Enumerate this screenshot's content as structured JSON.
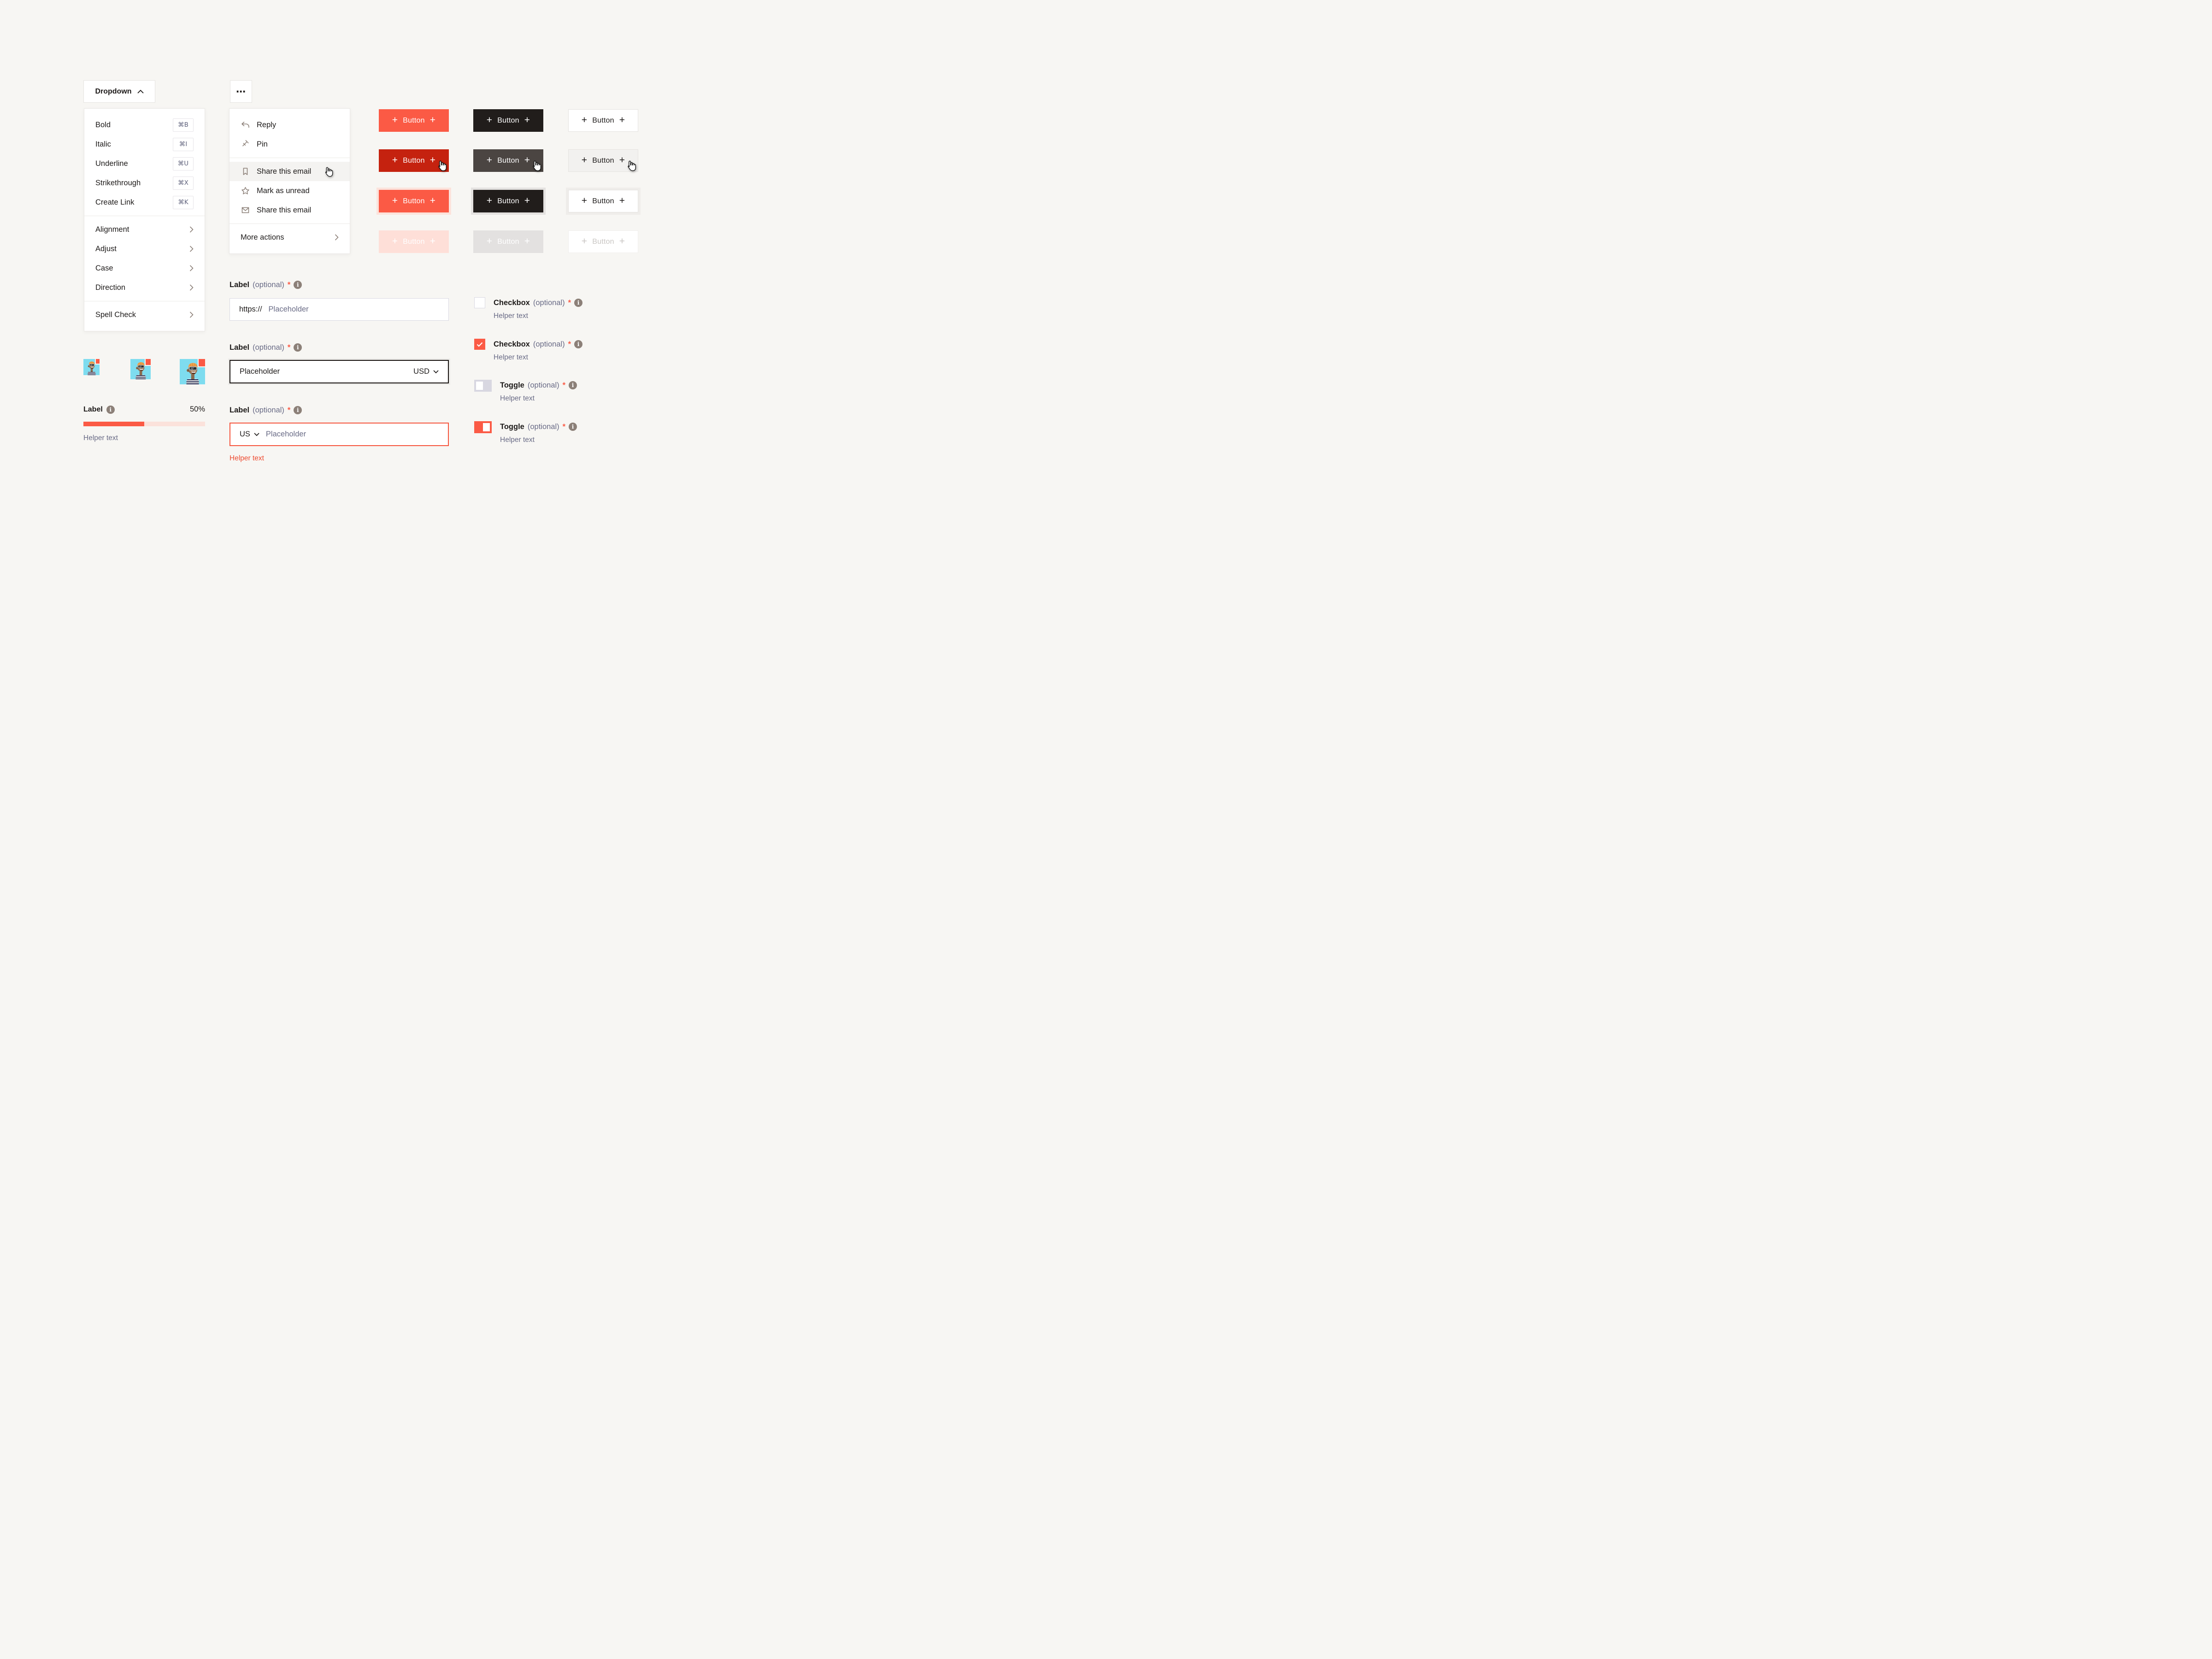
{
  "colors": {
    "background": "#F7F6F3",
    "accent": "#FB5A45",
    "accent_hover": "#C5220F",
    "accent_disabled": "#FEDFD8",
    "dark": "#211D1B",
    "dark_hover": "#4B4542",
    "dark_disabled": "#E3E1E0",
    "secondary_text": "#696B86",
    "icon_taupe": "#8C8078",
    "error_text": "#EE4B31"
  },
  "icons": {
    "info": "i"
  },
  "dropdown": {
    "label": "Dropdown"
  },
  "format_menu": {
    "items": [
      {
        "label": "Bold",
        "shortcut": "⌘B"
      },
      {
        "label": "Italic",
        "shortcut": "⌘I"
      },
      {
        "label": "Underline",
        "shortcut": "⌘U"
      },
      {
        "label": "Strikethrough",
        "shortcut": "⌘X"
      },
      {
        "label": "Create Link",
        "shortcut": "⌘K"
      },
      {
        "label": "Alignment"
      },
      {
        "label": "Adjust"
      },
      {
        "label": "Case"
      },
      {
        "label": "Direction"
      },
      {
        "label": "Spell Check"
      }
    ]
  },
  "actions_menu": {
    "trigger_icon": "⋯",
    "items": [
      {
        "label": "Reply",
        "icon": "reply-icon"
      },
      {
        "label": "Pin",
        "icon": "pin-icon"
      },
      {
        "label": "Share this email",
        "icon": "bookmark-icon",
        "state": "hover"
      },
      {
        "label": "Mark as unread",
        "icon": "star-icon"
      },
      {
        "label": "Share this email",
        "icon": "envelope-icon"
      },
      {
        "label": "More actions"
      }
    ]
  },
  "buttons": {
    "label": "Button",
    "plus": "+",
    "variants": [
      "primary",
      "dark",
      "outline"
    ],
    "states": [
      "default",
      "hover",
      "focus",
      "disabled"
    ]
  },
  "url_field": {
    "label": "Label",
    "optional": "(optional)",
    "required_mark": "*",
    "prefix": "https://",
    "placeholder": "Placeholder"
  },
  "currency_field": {
    "label": "Label",
    "optional": "(optional)",
    "required_mark": "*",
    "placeholder": "Placeholder",
    "currency": "USD"
  },
  "phone_field": {
    "label": "Label",
    "optional": "(optional)",
    "required_mark": "*",
    "country": "US",
    "placeholder": "Placeholder",
    "helper": "Helper text"
  },
  "checkbox_unchecked": {
    "label": "Checkbox",
    "optional": "(optional)",
    "required_mark": "*",
    "helper": "Helper text",
    "checked": false
  },
  "checkbox_checked": {
    "label": "Checkbox",
    "optional": "(optional)",
    "required_mark": "*",
    "helper": "Helper text",
    "checked": true
  },
  "toggle_off": {
    "label": "Toggle",
    "optional": "(optional)",
    "required_mark": "*",
    "helper": "Helper text",
    "on": false
  },
  "toggle_on": {
    "label": "Toggle",
    "optional": "(optional)",
    "required_mark": "*",
    "helper": "Helper text",
    "on": true
  },
  "avatars": {
    "sizes": [
      "small",
      "medium",
      "large"
    ]
  },
  "progress": {
    "label": "Label",
    "value": "50%",
    "percent": 50,
    "helper": "Helper text"
  }
}
